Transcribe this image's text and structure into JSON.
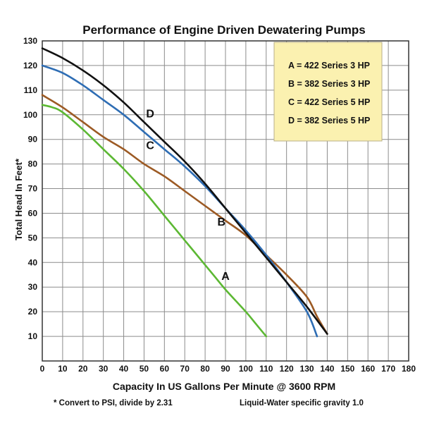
{
  "chart_data": {
    "type": "line",
    "title": "Performance of Engine Driven Dewatering Pumps",
    "xlabel": "Capacity In US Gallons Per Minute @ 3600 RPM",
    "ylabel": "Total Head In Feet*",
    "xlim": [
      0,
      180
    ],
    "ylim": [
      0,
      130
    ],
    "xticks": [
      0,
      10,
      20,
      30,
      40,
      50,
      60,
      70,
      80,
      90,
      100,
      110,
      120,
      130,
      140,
      150,
      160,
      170,
      180
    ],
    "yticks": [
      10,
      20,
      30,
      40,
      50,
      60,
      70,
      80,
      90,
      100,
      110,
      120,
      130
    ],
    "grid": true,
    "legend_position": "top-right",
    "legend": [
      "A = 422 Series  3 HP",
      "B = 382 Series  3 HP",
      "C = 422 Series  5 HP",
      "D = 382 Series  5 HP"
    ],
    "footnote_left": "* Convert to PSI, divide by 2.31",
    "footnote_right": "Liquid-Water specific gravity 1.0",
    "series": [
      {
        "name": "A",
        "color": "#5cb833",
        "label_at": [
          88,
          33
        ],
        "x": [
          0,
          5,
          10,
          20,
          30,
          40,
          50,
          60,
          70,
          80,
          85,
          90,
          100,
          105,
          110
        ],
        "y": [
          104,
          103,
          101,
          94,
          86,
          78,
          69,
          59,
          49,
          39,
          34,
          29,
          20,
          15,
          10
        ]
      },
      {
        "name": "B",
        "color": "#9c5a24",
        "label_at": [
          86,
          55
        ],
        "x": [
          0,
          10,
          20,
          30,
          40,
          50,
          60,
          70,
          80,
          90,
          100,
          110,
          120,
          130,
          135,
          140
        ],
        "y": [
          108,
          103,
          97,
          91,
          86,
          80,
          75,
          69,
          63,
          57,
          51,
          43,
          35,
          26,
          18,
          11
        ]
      },
      {
        "name": "C",
        "color": "#2e6db4",
        "label_at": [
          51,
          86
        ],
        "x": [
          0,
          10,
          20,
          30,
          40,
          50,
          60,
          70,
          80,
          90,
          100,
          110,
          120,
          130,
          135
        ],
        "y": [
          120,
          117,
          112,
          106,
          100,
          93,
          86,
          79,
          71,
          62,
          53,
          43,
          32,
          20,
          10
        ]
      },
      {
        "name": "D",
        "color": "#111111",
        "label_at": [
          51,
          99
        ],
        "x": [
          0,
          10,
          20,
          30,
          40,
          50,
          60,
          70,
          80,
          90,
          100,
          110,
          120,
          130,
          140
        ],
        "y": [
          127,
          123,
          118,
          112,
          105,
          97,
          89,
          81,
          72,
          62,
          52,
          42,
          32,
          22,
          11
        ]
      }
    ]
  }
}
